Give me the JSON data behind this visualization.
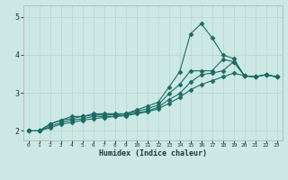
{
  "xlabel": "Humidex (Indice chaleur)",
  "bg_color": "#cce8e4",
  "line_color": "#1a6b64",
  "grid_color": "#b8d8d4",
  "xlim": [
    -0.5,
    23.5
  ],
  "ylim": [
    1.75,
    5.3
  ],
  "xticks": [
    0,
    1,
    2,
    3,
    4,
    5,
    6,
    7,
    8,
    9,
    10,
    11,
    12,
    13,
    14,
    15,
    16,
    17,
    18,
    19,
    20,
    21,
    22,
    23
  ],
  "yticks": [
    2,
    3,
    4,
    5
  ],
  "line1_x": [
    0,
    1,
    2,
    3,
    4,
    5,
    6,
    7,
    8,
    9,
    10,
    11,
    12,
    13,
    14,
    15,
    16,
    17,
    18,
    19,
    20,
    21,
    22,
    23
  ],
  "line1_y": [
    2.0,
    2.0,
    2.18,
    2.28,
    2.38,
    2.38,
    2.45,
    2.45,
    2.45,
    2.45,
    2.55,
    2.65,
    2.75,
    3.15,
    3.55,
    4.55,
    4.82,
    4.45,
    4.0,
    3.9,
    3.45,
    3.42,
    3.48,
    3.42
  ],
  "line2_x": [
    0,
    1,
    2,
    3,
    4,
    5,
    6,
    7,
    8,
    9,
    10,
    11,
    12,
    13,
    14,
    15,
    16,
    17,
    18,
    19,
    20,
    21,
    22,
    23
  ],
  "line2_y": [
    2.0,
    2.0,
    2.18,
    2.28,
    2.32,
    2.38,
    2.42,
    2.42,
    2.42,
    2.45,
    2.52,
    2.58,
    2.68,
    2.98,
    3.22,
    3.58,
    3.58,
    3.58,
    3.88,
    3.82,
    3.45,
    3.42,
    3.48,
    3.42
  ],
  "line3_x": [
    0,
    1,
    2,
    3,
    4,
    5,
    6,
    7,
    8,
    9,
    10,
    11,
    12,
    13,
    14,
    15,
    16,
    17,
    18,
    19,
    20,
    21,
    22,
    23
  ],
  "line3_y": [
    2.0,
    2.0,
    2.12,
    2.22,
    2.28,
    2.32,
    2.38,
    2.38,
    2.38,
    2.42,
    2.48,
    2.52,
    2.62,
    2.82,
    2.98,
    3.28,
    3.48,
    3.52,
    3.58,
    3.82,
    3.45,
    3.42,
    3.48,
    3.42
  ],
  "line4_x": [
    0,
    1,
    2,
    3,
    4,
    5,
    6,
    7,
    8,
    9,
    10,
    11,
    12,
    13,
    14,
    15,
    16,
    17,
    18,
    19,
    20,
    21,
    22,
    23
  ],
  "line4_y": [
    2.0,
    2.0,
    2.08,
    2.18,
    2.22,
    2.28,
    2.32,
    2.35,
    2.38,
    2.4,
    2.45,
    2.5,
    2.58,
    2.72,
    2.88,
    3.08,
    3.22,
    3.32,
    3.42,
    3.52,
    3.45,
    3.42,
    3.48,
    3.42
  ]
}
